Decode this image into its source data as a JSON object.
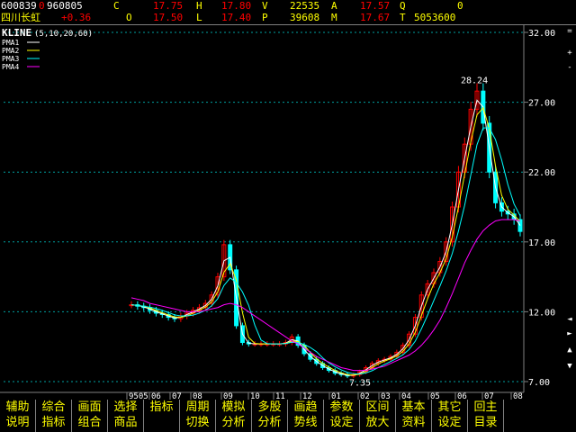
{
  "quote": {
    "code": "600839",
    "code_suffix": "0",
    "date": "960805",
    "name": "四川长虹",
    "change": "+0.36",
    "fields": [
      {
        "label": "C",
        "value": "17.75"
      },
      {
        "label": "H",
        "value": "17.80"
      },
      {
        "label": "V",
        "value": "22535"
      },
      {
        "label": "A",
        "value": "17.57"
      },
      {
        "label": "Q",
        "value": "0"
      },
      {
        "label": "O",
        "value": "17.50"
      },
      {
        "label": "L",
        "value": "17.40"
      },
      {
        "label": "P",
        "value": "39608"
      },
      {
        "label": "M",
        "value": "17.67"
      },
      {
        "label": "T",
        "value": "5053600"
      }
    ]
  },
  "chart_data": {
    "type": "line",
    "title": "KLINE",
    "params": "(5,10,20,60)",
    "legend": [
      "PMA1",
      "PMA2",
      "PMA3",
      "PMA4"
    ],
    "legend_colors": [
      "#ffffff",
      "#ffff00",
      "#00ffff",
      "#ff00ff"
    ],
    "ylim": [
      7,
      32
    ],
    "yticks": [
      "32.00",
      "27.00",
      "22.00",
      "17.00",
      "12.00",
      "7.00"
    ],
    "xtick_labels": [
      "9505",
      "06",
      "07",
      "08",
      "09",
      "10",
      "11",
      "12",
      "01",
      "02",
      "03",
      "04",
      "05",
      "06",
      "07",
      "08"
    ],
    "annotations": [
      {
        "text": "28.24",
        "x": "07",
        "y": 28.24
      },
      {
        "text": "7.35",
        "x": "01",
        "y": 7.35
      }
    ],
    "grid": true,
    "legend_position": "top-left",
    "series_price": [
      12.5,
      12.4,
      12.3,
      12.1,
      11.9,
      11.8,
      11.6,
      11.5,
      11.7,
      11.9,
      12.1,
      12.3,
      12.6,
      13.2,
      14.5,
      16.8,
      15.0,
      11.0,
      9.8,
      9.7,
      9.7,
      9.7,
      9.7,
      9.7,
      9.7,
      9.8,
      10.2,
      9.6,
      9.0,
      8.6,
      8.3,
      8.0,
      7.8,
      7.6,
      7.5,
      7.4,
      7.5,
      7.7,
      8.0,
      8.3,
      8.5,
      8.6,
      8.8,
      9.1,
      9.6,
      10.4,
      11.6,
      13.2,
      14.0,
      14.8,
      15.6,
      17.0,
      19.5,
      22.0,
      24.0,
      26.5,
      27.8,
      25.5,
      22.0,
      19.8,
      19.2,
      19.0,
      18.6,
      17.75
    ],
    "series_ma60": [
      13.0,
      12.9,
      12.8,
      12.6,
      12.5,
      12.4,
      12.3,
      12.2,
      12.1,
      12.0,
      12.0,
      12.0,
      12.1,
      12.2,
      12.3,
      12.5,
      12.6,
      12.5,
      12.3,
      12.0,
      11.7,
      11.4,
      11.1,
      10.8,
      10.5,
      10.2,
      9.9,
      9.7,
      9.4,
      9.1,
      8.8,
      8.6,
      8.4,
      8.2,
      8.0,
      7.9,
      7.8,
      7.8,
      7.8,
      7.9,
      8.0,
      8.1,
      8.3,
      8.5,
      8.7,
      8.9,
      9.2,
      9.6,
      10.1,
      10.7,
      11.4,
      12.3,
      13.3,
      14.4,
      15.5,
      16.4,
      17.2,
      17.8,
      18.2,
      18.5,
      18.6,
      18.6,
      18.6,
      18.5
    ]
  },
  "menu": [
    {
      "line1": "辅助",
      "line2": "说明"
    },
    {
      "line1": "综合",
      "line2": "指标"
    },
    {
      "line1": "画面",
      "line2": "组合"
    },
    {
      "line1": "选择",
      "line2": "商品"
    },
    {
      "line1": "",
      "line2": "指标"
    },
    {
      "line1": "周期",
      "line2": "切换"
    },
    {
      "line1": "模拟",
      "line2": "分析"
    },
    {
      "line1": "多股",
      "line2": "分析"
    },
    {
      "line1": "画趋",
      "line2": "势线"
    },
    {
      "line1": "参数",
      "line2": "设定"
    },
    {
      "line1": "区间",
      "line2": "放大"
    },
    {
      "line1": "基本",
      "line2": "资料"
    },
    {
      "line1": "其它",
      "line2": "设定"
    },
    {
      "line1": "回主",
      "line2": "目录"
    }
  ],
  "side_icons": [
    "equals-icon",
    "plus-icon",
    "minus-icon",
    "left-arrow-icon",
    "right-arrow-icon",
    "up-arrow-icon",
    "down-arrow-icon"
  ]
}
